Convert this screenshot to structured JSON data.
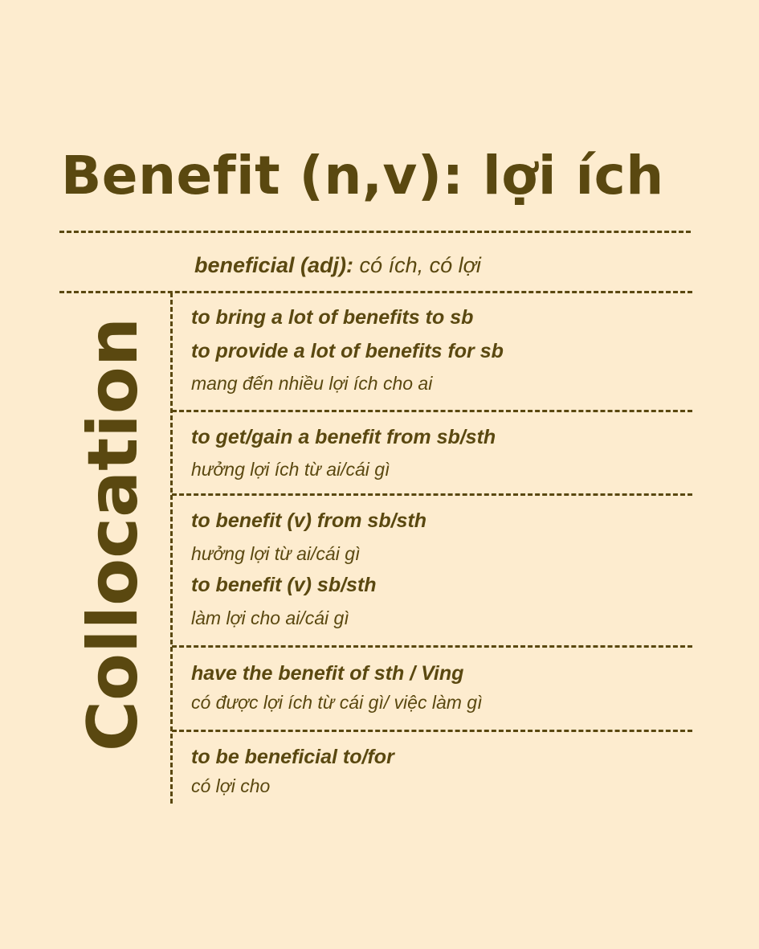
{
  "title": "Benefit (n,v): lợi ích",
  "derived": {
    "word": "beneficial (adj):",
    "meaning": "có ích, có lợi"
  },
  "side_label": "Collocation",
  "groups": [
    {
      "lines": [
        {
          "en": "to bring a lot of benefits to sb"
        },
        {
          "en": "to provide a lot of benefits for sb"
        },
        {
          "vi": "mang đến nhiều lợi ích cho ai"
        }
      ]
    },
    {
      "lines": [
        {
          "en": "to get/gain a benefit from sb/sth"
        },
        {
          "vi": "hưởng lợi ích từ ai/cái gì"
        }
      ]
    },
    {
      "lines": [
        {
          "en": "to benefit (v) from sb/sth"
        },
        {
          "vi": "hưởng lợi từ ai/cái gì"
        },
        {
          "en": "to benefit (v) sb/sth"
        },
        {
          "vi": "làm lợi cho ai/cái gì"
        }
      ]
    },
    {
      "lines": [
        {
          "en": "have the benefit of sth / Ving"
        },
        {
          "vi": "có được lợi ích từ cái gì/ việc làm gì"
        }
      ]
    },
    {
      "lines": [
        {
          "en": "to be beneficial to/for"
        },
        {
          "vi": "có lợi cho"
        }
      ]
    }
  ]
}
